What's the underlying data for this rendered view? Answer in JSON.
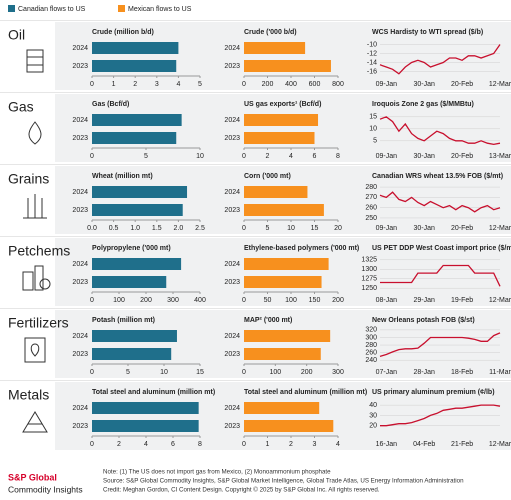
{
  "legend": [
    {
      "name": "Canadian flows to US",
      "color": "#1f6f8b"
    },
    {
      "name": "Mexican flows to US",
      "color": "#f7901e"
    }
  ],
  "rows": [
    {
      "name": "Oil",
      "chart_data": [
        {
          "type": "bar",
          "title": "Crude (million b/d)",
          "categories": [
            "2024",
            "2023"
          ],
          "values": [
            4.0,
            3.9
          ],
          "color": "#1f6f8b",
          "xlim": [
            0,
            5
          ],
          "xticks": [
            0,
            1,
            2,
            3,
            4,
            5
          ]
        },
        {
          "type": "bar",
          "title": "Crude ('000 b/d)",
          "categories": [
            "2024",
            "2023"
          ],
          "values": [
            520,
            740
          ],
          "color": "#f7901e",
          "xlim": [
            0,
            800
          ],
          "xticks": [
            0,
            200,
            400,
            600,
            800
          ]
        },
        {
          "type": "line",
          "title": "WCS Hardisty to WTI spread ($/b)",
          "categories": [
            null,
            "09-Jan",
            null,
            null,
            null,
            null,
            null,
            "30-Jan",
            null,
            null,
            null,
            null,
            null,
            "20-Feb",
            null,
            null,
            null,
            null,
            null,
            "12-Mar"
          ],
          "values": [
            -14.5,
            -15,
            -15.5,
            -16.5,
            -15,
            -14,
            -13.5,
            -14,
            -15,
            -14.5,
            -14,
            -13,
            -13,
            -13.5,
            -12.5,
            -12.5,
            -13,
            -12.5,
            -12,
            -10
          ],
          "color": "#c8102e",
          "ylim": [
            -17,
            -9
          ],
          "yticks": [
            -16,
            -14,
            -12,
            -10
          ]
        }
      ]
    },
    {
      "name": "Gas",
      "chart_data": [
        {
          "type": "bar",
          "title": "Gas (Bcf/d)",
          "categories": [
            "2024",
            "2023"
          ],
          "values": [
            8.3,
            7.8
          ],
          "color": "#1f6f8b",
          "xlim": [
            0,
            10
          ],
          "xticks": [
            0,
            5,
            10
          ]
        },
        {
          "type": "bar",
          "title": "US gas exports¹ (Bcf/d)",
          "categories": [
            "2024",
            "2023"
          ],
          "values": [
            6.3,
            6.0
          ],
          "color": "#f7901e",
          "xlim": [
            0,
            8
          ],
          "xticks": [
            0,
            2,
            4,
            6,
            8
          ]
        },
        {
          "type": "line",
          "title": "Iroquois Zone 2 gas ($/MMBtu)",
          "categories": [
            null,
            "09-Jan",
            null,
            null,
            null,
            null,
            null,
            "30-Jan",
            null,
            null,
            null,
            null,
            null,
            "20-Feb",
            null,
            null,
            null,
            null,
            null,
            "13-Mar"
          ],
          "values": [
            14,
            15,
            13,
            9,
            12,
            8,
            6,
            5,
            7,
            9,
            8,
            6,
            5,
            5,
            4,
            4,
            5,
            4,
            3.5,
            4
          ],
          "color": "#c8102e",
          "ylim": [
            2,
            17
          ],
          "yticks": [
            5,
            10,
            15
          ]
        }
      ]
    },
    {
      "name": "Grains",
      "chart_data": [
        {
          "type": "bar",
          "title": "Wheat (million mt)",
          "categories": [
            "2024",
            "2023"
          ],
          "values": [
            2.2,
            2.1
          ],
          "color": "#1f6f8b",
          "xlim": [
            0,
            2.5
          ],
          "xticks": [
            {
              "value": 0,
              "label": "0.0"
            },
            0.5,
            {
              "value": 1,
              "label": "1.0"
            },
            1.5,
            {
              "value": 2,
              "label": "2.0"
            },
            2.5
          ]
        },
        {
          "type": "bar",
          "title": "Corn ('000 mt)",
          "categories": [
            "2024",
            "2023"
          ],
          "values": [
            13.5,
            17
          ],
          "color": "#f7901e",
          "xlim": [
            0,
            20
          ],
          "xticks": [
            0,
            5,
            10,
            15,
            20
          ]
        },
        {
          "type": "line",
          "title": "Canadian WRS wheat 13.5% FOB ($/mt)",
          "categories": [
            null,
            "09-Jan",
            null,
            null,
            null,
            null,
            null,
            "30-Jan",
            null,
            null,
            null,
            null,
            null,
            "20-Feb",
            null,
            null,
            null,
            null,
            null,
            "12-Mar"
          ],
          "values": [
            272,
            270,
            275,
            268,
            266,
            270,
            265,
            262,
            266,
            263,
            260,
            262,
            258,
            262,
            260,
            256,
            260,
            262,
            258,
            260
          ],
          "color": "#c8102e",
          "ylim": [
            248,
            283
          ],
          "yticks": [
            250,
            260,
            270,
            280
          ]
        }
      ]
    },
    {
      "name": "Petchems",
      "chart_data": [
        {
          "type": "bar",
          "title": "Polypropylene ('000 mt)",
          "categories": [
            "2024",
            "2023"
          ],
          "values": [
            330,
            275
          ],
          "color": "#1f6f8b",
          "xlim": [
            0,
            400
          ],
          "xticks": [
            0,
            100,
            200,
            300,
            400
          ]
        },
        {
          "type": "bar",
          "title": "Ethylene-based polymers ('000 mt)",
          "categories": [
            "2024",
            "2023"
          ],
          "values": [
            180,
            165
          ],
          "color": "#f7901e",
          "xlim": [
            0,
            200
          ],
          "xticks": [
            0,
            50,
            100,
            150,
            200
          ]
        },
        {
          "type": "line",
          "title": "US PET DDP West Coast import price ($/mt)",
          "categories": [
            null,
            "08-Jan",
            null,
            null,
            null,
            null,
            null,
            "29-Jan",
            null,
            null,
            null,
            null,
            null,
            "19-Feb",
            null,
            null,
            null,
            null,
            null,
            "12-Mar"
          ],
          "values": [
            1265,
            1265,
            1265,
            1265,
            1265,
            1265,
            1290,
            1290,
            1290,
            1290,
            1310,
            1310,
            1310,
            1310,
            1310,
            1290,
            1290,
            1290,
            1290,
            1255
          ],
          "color": "#c8102e",
          "ylim": [
            1240,
            1335
          ],
          "yticks": [
            1250,
            1275,
            1300,
            1325
          ]
        }
      ]
    },
    {
      "name": "Fertilizers",
      "chart_data": [
        {
          "type": "bar",
          "title": "Potash (million mt)",
          "categories": [
            "2024",
            "2023"
          ],
          "values": [
            11.8,
            11
          ],
          "color": "#1f6f8b",
          "xlim": [
            0,
            15
          ],
          "xticks": [
            0,
            5,
            10,
            15
          ]
        },
        {
          "type": "bar",
          "title": "MAP² ('000 mt)",
          "categories": [
            "2024",
            "2023"
          ],
          "values": [
            275,
            245
          ],
          "color": "#f7901e",
          "xlim": [
            0,
            300
          ],
          "xticks": [
            0,
            100,
            200,
            300
          ]
        },
        {
          "type": "line",
          "title": "New Orleans potash FOB ($/st)",
          "categories": [
            null,
            "07-Jan",
            null,
            null,
            null,
            null,
            null,
            "28-Jan",
            null,
            null,
            null,
            null,
            null,
            "18-Feb",
            null,
            null,
            null,
            null,
            null,
            "11-Mar"
          ],
          "values": [
            250,
            255,
            262,
            268,
            270,
            270,
            272,
            285,
            300,
            300,
            300,
            300,
            300,
            300,
            298,
            295,
            290,
            290,
            305,
            312
          ],
          "color": "#c8102e",
          "ylim": [
            230,
            325
          ],
          "yticks": [
            240,
            260,
            280,
            300,
            320
          ]
        }
      ]
    },
    {
      "name": "Metals",
      "chart_data": [
        {
          "type": "bar",
          "title": "Total steel and aluminum (million mt)",
          "categories": [
            "2024",
            "2023"
          ],
          "values": [
            7.9,
            7.9
          ],
          "color": "#1f6f8b",
          "xlim": [
            0,
            8
          ],
          "xticks": [
            0,
            2,
            4,
            6,
            8
          ]
        },
        {
          "type": "bar",
          "title": "Total steel and aluminum (million mt)",
          "categories": [
            "2024",
            "2023"
          ],
          "values": [
            3.2,
            3.8
          ],
          "color": "#f7901e",
          "xlim": [
            0,
            4
          ],
          "xticks": [
            0,
            1,
            2,
            3,
            4
          ]
        },
        {
          "type": "line",
          "title": "US primary aluminum premium (¢/lb)",
          "categories": [
            null,
            "16-Jan",
            null,
            null,
            null,
            null,
            null,
            "04-Feb",
            null,
            null,
            null,
            null,
            null,
            "21-Feb",
            null,
            null,
            null,
            null,
            null,
            "12-Mar"
          ],
          "values": [
            20,
            20,
            21,
            22,
            22,
            23,
            25,
            27,
            30,
            32,
            35,
            36,
            37,
            37,
            38,
            39,
            40,
            40,
            40,
            39
          ],
          "color": "#c8102e",
          "ylim": [
            10,
            45
          ],
          "yticks": [
            20,
            30,
            40
          ]
        }
      ]
    }
  ],
  "footer": {
    "brand": "S&P Global",
    "brand_sub": "Commodity Insights",
    "notes": [
      "Note: (1) The US does not import gas from Mexico, (2) Monoammonium phosphate",
      "Source: S&P Global Commodity Insights, S&P Global Market Intelligence, Global Trade Atlas, US Energy Information Administration",
      "Credit: Meghan Gordon, CI Content Design. Copyright © 2025 by S&P Global Inc. All rights reserved."
    ]
  }
}
